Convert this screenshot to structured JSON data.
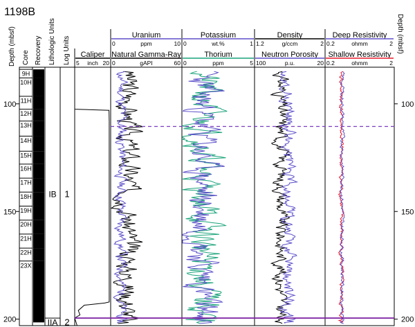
{
  "site": "1198B",
  "depth_axis": {
    "label": "Depth (mbsf)",
    "ticks": [
      100,
      150,
      200
    ],
    "ylim": [
      83,
      203
    ]
  },
  "column_headers": {
    "core": "Core",
    "recovery": "Recovery",
    "lithologic_units": "Lithologic Units",
    "log_units": "Log Units"
  },
  "cores": [
    {
      "label": "9H",
      "top": 84.0,
      "bottom": 88.0
    },
    {
      "label": "10H",
      "top": 88.0,
      "bottom": 96.5
    },
    {
      "label": "11H",
      "top": 96.5,
      "bottom": 102.5
    },
    {
      "label": "12H",
      "top": 102.5,
      "bottom": 108.0
    },
    {
      "label": "13H",
      "top": 108.0,
      "bottom": 115.0
    },
    {
      "label": "14H",
      "top": 115.0,
      "bottom": 122.0
    },
    {
      "label": "15H",
      "top": 122.0,
      "bottom": 128.0
    },
    {
      "label": "16H",
      "top": 128.0,
      "bottom": 134.5
    },
    {
      "label": "17H",
      "top": 134.5,
      "bottom": 141.0
    },
    {
      "label": "18H",
      "top": 141.0,
      "bottom": 147.5
    },
    {
      "label": "19H",
      "top": 147.5,
      "bottom": 154.0
    },
    {
      "label": "20H",
      "top": 154.0,
      "bottom": 160.5
    },
    {
      "label": "21H",
      "top": 160.5,
      "bottom": 167.0
    },
    {
      "label": "22H",
      "top": 167.0,
      "bottom": 173.0
    },
    {
      "label": "23X",
      "top": 173.0,
      "bottom": 203.0
    }
  ],
  "lithologic_units": [
    {
      "label": "IB",
      "top": 84,
      "bottom": 199.5
    },
    {
      "label": "IIA",
      "top": 199.5,
      "bottom": 203
    }
  ],
  "log_units": [
    {
      "label": "1",
      "top": 84,
      "bottom": 199.5
    },
    {
      "label": "2",
      "top": 199.5,
      "bottom": 203
    }
  ],
  "boundaries": {
    "dashed_depth": 110.5,
    "solid_depth": 199.5
  },
  "colors": {
    "black_log": "#000000",
    "blue_log": "#5b4fc9",
    "green_log": "#1aa37a",
    "red_log": "#e8192c",
    "dashed_boundary": "#7a3cc0",
    "solid_boundary": "#7a1fa0",
    "recovery_fill": "#000000"
  },
  "chart_data": {
    "type": "line",
    "tracks": [
      {
        "name": "caliper",
        "headers": [
          {
            "title": "Caliper",
            "min": "5",
            "unit": "inch",
            "max": "20",
            "color": "#000000"
          }
        ],
        "series": [
          {
            "name": "Caliper",
            "color": "#000000",
            "xlim": [
              5,
              20
            ],
            "points": [
              [
                84,
                5.0
              ],
              [
                102.5,
                5.0
              ],
              [
                103,
                19.3
              ],
              [
                108,
                19.4
              ],
              [
                150,
                19.4
              ],
              [
                192,
                19.4
              ],
              [
                192.5,
                17.5
              ],
              [
                193.5,
                9.0
              ],
              [
                196,
                6.5
              ],
              [
                198,
                7.2
              ],
              [
                199.5,
                5.0
              ],
              [
                203,
                6.0
              ]
            ]
          }
        ]
      },
      {
        "name": "gamma",
        "headers": [
          {
            "title": "Uranium",
            "min": "0",
            "unit": "ppm",
            "max": "10",
            "color": "#5b4fc9"
          },
          {
            "title": "Natural Gamma-Ray",
            "min": "0",
            "unit": "gAPI",
            "max": "60",
            "color": "#000000"
          }
        ],
        "series": [
          {
            "name": "Natural Gamma-Ray",
            "color": "#000000",
            "xlim": [
              0,
              60
            ],
            "base": 15,
            "amp": 7,
            "seed": 3
          },
          {
            "name": "Uranium",
            "color": "#5b4fc9",
            "xlim": [
              0,
              10
            ],
            "base": 1.5,
            "amp": 0.6,
            "seed": 11
          }
        ]
      },
      {
        "name": "k_th",
        "headers": [
          {
            "title": "Potassium",
            "min": "0",
            "unit": "wt.%",
            "max": "1",
            "color": "#5b4fc9"
          },
          {
            "title": "Thorium",
            "min": "0",
            "unit": "ppm",
            "max": "5",
            "color": "#1aa37a"
          }
        ],
        "series": [
          {
            "name": "Thorium",
            "color": "#1aa37a",
            "xlim": [
              0,
              5
            ],
            "base": 1.5,
            "amp": 0.9,
            "seed": 21
          },
          {
            "name": "Potassium",
            "color": "#5b4fc9",
            "xlim": [
              0,
              1
            ],
            "base": 0.28,
            "amp": 0.17,
            "seed": 23
          }
        ]
      },
      {
        "name": "density",
        "headers": [
          {
            "title": "Density",
            "min": "1.2",
            "unit": "g/ccm",
            "max": "2",
            "color": "#000000"
          },
          {
            "title": "Neutron Porosity",
            "min": "100",
            "unit": "p.u.",
            "max": "20",
            "color": "#5b4fc9"
          }
        ],
        "series": [
          {
            "name": "Density",
            "color": "#000000",
            "xlim": [
              1.2,
              2
            ],
            "base": 1.5,
            "amp": 0.06,
            "seed": 31
          },
          {
            "name": "Neutron Porosity",
            "color": "#5b4fc9",
            "xlim": [
              100,
              20
            ],
            "base": 62,
            "amp": 6,
            "seed": 37
          }
        ]
      },
      {
        "name": "resistivity",
        "headers": [
          {
            "title": "Deep Resistivity",
            "min": "0.2",
            "unit": "ohmm",
            "max": "2",
            "color": "#5b4fc9"
          },
          {
            "title": "Shallow Resistivity",
            "min": "0.2",
            "unit": "ohmm",
            "max": "2",
            "color": "#e8192c"
          }
        ],
        "series": [
          {
            "name": "Shallow Resistivity",
            "color": "#e8192c",
            "xlim": [
              0.2,
              2
            ],
            "base": 0.62,
            "amp": 0.04,
            "seed": 41
          },
          {
            "name": "Deep Resistivity",
            "color": "#5b4fc9",
            "xlim": [
              0.2,
              2
            ],
            "base": 0.65,
            "amp": 0.035,
            "seed": 43
          }
        ]
      }
    ]
  }
}
